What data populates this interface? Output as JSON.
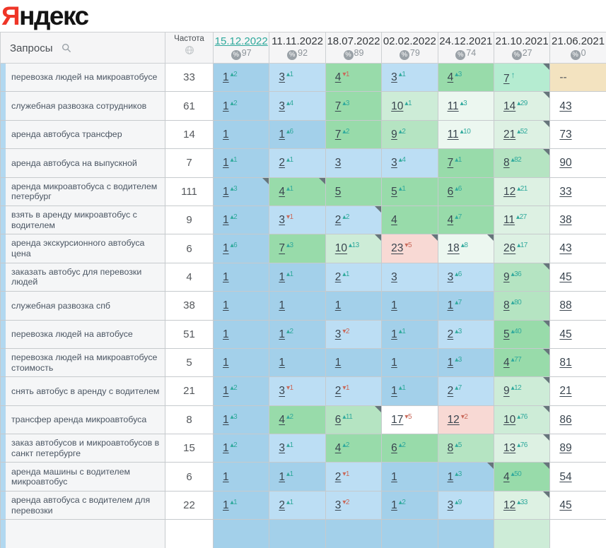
{
  "logo": {
    "ya": "Я",
    "rest": "ндекс"
  },
  "glyphs": {
    "up": "▴",
    "down": "▾",
    "new": "↑",
    "percent": "%"
  },
  "palette": {
    "blue1": "#a3d0ea",
    "blue2": "#bcdef4",
    "green1": "#98dbaa",
    "green2": "#b5e4c2",
    "green3": "#cdecd7",
    "green4": "#ddf1e3",
    "green5": "#ecf7f0",
    "mint": "#b5ecd1",
    "pink": "#f8d9d4",
    "tan": "#f3e3c0",
    "white": "#ffffff",
    "accent_teal": "#2fa99c",
    "delta_red": "#c9695a",
    "corner": "#66757b",
    "strip_blue": "#b2d8f0",
    "logo_red": "#ef3527"
  },
  "table": {
    "queries_header": "Запросы",
    "frequency_header": "Частота",
    "dates": [
      {
        "label": "15.12.2022",
        "score": "97",
        "selected": true
      },
      {
        "label": "11.11.2022",
        "score": "92",
        "selected": false
      },
      {
        "label": "18.07.2022",
        "score": "89",
        "selected": false
      },
      {
        "label": "02.02.2022",
        "score": "79",
        "selected": false
      },
      {
        "label": "24.12.2021",
        "score": "74",
        "selected": false
      },
      {
        "label": "21.10.2021",
        "score": "27",
        "selected": false
      },
      {
        "label": "21.06.2021",
        "score": "0",
        "selected": false
      }
    ],
    "rows": [
      {
        "query": "перевозка людей на микроавтобусе",
        "frequency": "33",
        "cells": [
          {
            "value": "1",
            "delta": "2",
            "dir": "up",
            "bg": "blue1"
          },
          {
            "value": "3",
            "delta": "1",
            "dir": "up",
            "bg": "blue2"
          },
          {
            "value": "4",
            "delta": "1",
            "dir": "down",
            "bg": "green1"
          },
          {
            "value": "3",
            "delta": "1",
            "dir": "up",
            "bg": "blue2"
          },
          {
            "value": "4",
            "delta": "3",
            "dir": "up",
            "bg": "green1"
          },
          {
            "value": "7",
            "delta": "",
            "dir": "new",
            "bg": "mint",
            "corner": true
          },
          {
            "value": "--",
            "delta": "",
            "dir": "none",
            "bg": "tan",
            "nolink": true
          }
        ]
      },
      {
        "query": "служебная развозка сотрудников",
        "frequency": "61",
        "cells": [
          {
            "value": "1",
            "delta": "2",
            "dir": "up",
            "bg": "blue1"
          },
          {
            "value": "3",
            "delta": "4",
            "dir": "up",
            "bg": "blue2"
          },
          {
            "value": "7",
            "delta": "3",
            "dir": "up",
            "bg": "green1"
          },
          {
            "value": "10",
            "delta": "1",
            "dir": "up",
            "bg": "green3"
          },
          {
            "value": "11",
            "delta": "3",
            "dir": "up",
            "bg": "green5"
          },
          {
            "value": "14",
            "delta": "29",
            "dir": "up",
            "bg": "green4",
            "corner": true
          },
          {
            "value": "43",
            "delta": "",
            "dir": "none",
            "bg": "white"
          }
        ]
      },
      {
        "query": "аренда автобуса трансфер",
        "frequency": "14",
        "cells": [
          {
            "value": "1",
            "delta": "",
            "dir": "none",
            "bg": "blue1"
          },
          {
            "value": "1",
            "delta": "6",
            "dir": "up",
            "bg": "blue1"
          },
          {
            "value": "7",
            "delta": "2",
            "dir": "up",
            "bg": "green1"
          },
          {
            "value": "9",
            "delta": "2",
            "dir": "up",
            "bg": "green2"
          },
          {
            "value": "11",
            "delta": "10",
            "dir": "up",
            "bg": "green5"
          },
          {
            "value": "21",
            "delta": "52",
            "dir": "up",
            "bg": "green4",
            "corner": true
          },
          {
            "value": "73",
            "delta": "",
            "dir": "none",
            "bg": "white"
          }
        ]
      },
      {
        "query": "аренда автобуса на выпускной",
        "frequency": "7",
        "cells": [
          {
            "value": "1",
            "delta": "1",
            "dir": "up",
            "bg": "blue1"
          },
          {
            "value": "2",
            "delta": "1",
            "dir": "up",
            "bg": "blue2"
          },
          {
            "value": "3",
            "delta": "",
            "dir": "none",
            "bg": "blue2"
          },
          {
            "value": "3",
            "delta": "4",
            "dir": "up",
            "bg": "blue2"
          },
          {
            "value": "7",
            "delta": "1",
            "dir": "up",
            "bg": "green1"
          },
          {
            "value": "8",
            "delta": "82",
            "dir": "up",
            "bg": "green2",
            "corner": true
          },
          {
            "value": "90",
            "delta": "",
            "dir": "none",
            "bg": "white"
          }
        ]
      },
      {
        "query": "аренда микроавтобуса с водителем петербург",
        "frequency": "111",
        "cells": [
          {
            "value": "1",
            "delta": "3",
            "dir": "up",
            "bg": "blue1",
            "corner": true
          },
          {
            "value": "4",
            "delta": "1",
            "dir": "up",
            "bg": "green1",
            "corner": true
          },
          {
            "value": "5",
            "delta": "",
            "dir": "none",
            "bg": "green1"
          },
          {
            "value": "5",
            "delta": "1",
            "dir": "up",
            "bg": "green1"
          },
          {
            "value": "6",
            "delta": "6",
            "dir": "up",
            "bg": "green1"
          },
          {
            "value": "12",
            "delta": "21",
            "dir": "up",
            "bg": "green4"
          },
          {
            "value": "33",
            "delta": "",
            "dir": "none",
            "bg": "white"
          }
        ]
      },
      {
        "query": "взять в аренду микроавтобус с водителем",
        "frequency": "9",
        "cells": [
          {
            "value": "1",
            "delta": "2",
            "dir": "up",
            "bg": "blue1"
          },
          {
            "value": "3",
            "delta": "1",
            "dir": "down",
            "bg": "blue2"
          },
          {
            "value": "2",
            "delta": "2",
            "dir": "up",
            "bg": "blue2",
            "corner": true
          },
          {
            "value": "4",
            "delta": "",
            "dir": "none",
            "bg": "green1"
          },
          {
            "value": "4",
            "delta": "7",
            "dir": "up",
            "bg": "green1"
          },
          {
            "value": "11",
            "delta": "27",
            "dir": "up",
            "bg": "green4"
          },
          {
            "value": "38",
            "delta": "",
            "dir": "none",
            "bg": "white"
          }
        ]
      },
      {
        "query": "аренда экскурсионного автобуса цена",
        "frequency": "6",
        "cells": [
          {
            "value": "1",
            "delta": "6",
            "dir": "up",
            "bg": "blue1"
          },
          {
            "value": "7",
            "delta": "3",
            "dir": "up",
            "bg": "green1"
          },
          {
            "value": "10",
            "delta": "13",
            "dir": "up",
            "bg": "green3",
            "corner": true
          },
          {
            "value": "23",
            "delta": "5",
            "dir": "down",
            "bg": "pink",
            "corner": true
          },
          {
            "value": "18",
            "delta": "8",
            "dir": "up",
            "bg": "green5",
            "corner": true
          },
          {
            "value": "26",
            "delta": "17",
            "dir": "up",
            "bg": "green4"
          },
          {
            "value": "43",
            "delta": "",
            "dir": "none",
            "bg": "white"
          }
        ]
      },
      {
        "query": "заказать автобус для перевозки людей",
        "frequency": "4",
        "cells": [
          {
            "value": "1",
            "delta": "",
            "dir": "none",
            "bg": "blue1"
          },
          {
            "value": "1",
            "delta": "1",
            "dir": "up",
            "bg": "blue1"
          },
          {
            "value": "2",
            "delta": "1",
            "dir": "up",
            "bg": "blue2"
          },
          {
            "value": "3",
            "delta": "",
            "dir": "none",
            "bg": "blue2"
          },
          {
            "value": "3",
            "delta": "6",
            "dir": "up",
            "bg": "blue2"
          },
          {
            "value": "9",
            "delta": "36",
            "dir": "up",
            "bg": "green2",
            "corner": true
          },
          {
            "value": "45",
            "delta": "",
            "dir": "none",
            "bg": "white"
          }
        ]
      },
      {
        "query": "служебная развозка спб",
        "frequency": "38",
        "cells": [
          {
            "value": "1",
            "delta": "",
            "dir": "none",
            "bg": "blue1"
          },
          {
            "value": "1",
            "delta": "",
            "dir": "none",
            "bg": "blue1"
          },
          {
            "value": "1",
            "delta": "",
            "dir": "none",
            "bg": "blue1"
          },
          {
            "value": "1",
            "delta": "",
            "dir": "none",
            "bg": "blue1"
          },
          {
            "value": "1",
            "delta": "7",
            "dir": "up",
            "bg": "blue1"
          },
          {
            "value": "8",
            "delta": "80",
            "dir": "up",
            "bg": "green2"
          },
          {
            "value": "88",
            "delta": "",
            "dir": "none",
            "bg": "white"
          }
        ]
      },
      {
        "query": "перевозка людей на автобусе",
        "frequency": "51",
        "cells": [
          {
            "value": "1",
            "delta": "",
            "dir": "none",
            "bg": "blue1"
          },
          {
            "value": "1",
            "delta": "2",
            "dir": "up",
            "bg": "blue1"
          },
          {
            "value": "3",
            "delta": "2",
            "dir": "down",
            "bg": "blue2"
          },
          {
            "value": "1",
            "delta": "1",
            "dir": "up",
            "bg": "blue1"
          },
          {
            "value": "2",
            "delta": "3",
            "dir": "up",
            "bg": "blue2"
          },
          {
            "value": "5",
            "delta": "40",
            "dir": "up",
            "bg": "green1",
            "corner": true
          },
          {
            "value": "45",
            "delta": "",
            "dir": "none",
            "bg": "white"
          }
        ]
      },
      {
        "query": "перевозка людей на микроавтобусе стоимость",
        "frequency": "5",
        "cells": [
          {
            "value": "1",
            "delta": "",
            "dir": "none",
            "bg": "blue1"
          },
          {
            "value": "1",
            "delta": "",
            "dir": "none",
            "bg": "blue1"
          },
          {
            "value": "1",
            "delta": "",
            "dir": "none",
            "bg": "blue1"
          },
          {
            "value": "1",
            "delta": "",
            "dir": "none",
            "bg": "blue1"
          },
          {
            "value": "1",
            "delta": "3",
            "dir": "up",
            "bg": "blue1"
          },
          {
            "value": "4",
            "delta": "77",
            "dir": "up",
            "bg": "green1",
            "corner": true
          },
          {
            "value": "81",
            "delta": "",
            "dir": "none",
            "bg": "white"
          }
        ]
      },
      {
        "query": "снять автобус в аренду с водителем",
        "frequency": "21",
        "cells": [
          {
            "value": "1",
            "delta": "2",
            "dir": "up",
            "bg": "blue1"
          },
          {
            "value": "3",
            "delta": "1",
            "dir": "down",
            "bg": "blue2"
          },
          {
            "value": "2",
            "delta": "1",
            "dir": "down",
            "bg": "blue2"
          },
          {
            "value": "1",
            "delta": "1",
            "dir": "up",
            "bg": "blue1"
          },
          {
            "value": "2",
            "delta": "7",
            "dir": "up",
            "bg": "blue2"
          },
          {
            "value": "9",
            "delta": "12",
            "dir": "up",
            "bg": "green3",
            "corner": true
          },
          {
            "value": "21",
            "delta": "",
            "dir": "none",
            "bg": "white"
          }
        ]
      },
      {
        "query": "трансфер аренда микроавтобуса",
        "frequency": "8",
        "cells": [
          {
            "value": "1",
            "delta": "3",
            "dir": "up",
            "bg": "blue1"
          },
          {
            "value": "4",
            "delta": "2",
            "dir": "up",
            "bg": "green1"
          },
          {
            "value": "6",
            "delta": "11",
            "dir": "up",
            "bg": "green2",
            "corner": true
          },
          {
            "value": "17",
            "delta": "5",
            "dir": "down",
            "bg": "white"
          },
          {
            "value": "12",
            "delta": "2",
            "dir": "down",
            "bg": "pink"
          },
          {
            "value": "10",
            "delta": "76",
            "dir": "up",
            "bg": "green3",
            "corner": true
          },
          {
            "value": "86",
            "delta": "",
            "dir": "none",
            "bg": "white"
          }
        ]
      },
      {
        "query": "заказ автобусов и микроавтобусов в санкт петербурге",
        "frequency": "15",
        "cells": [
          {
            "value": "1",
            "delta": "2",
            "dir": "up",
            "bg": "blue1"
          },
          {
            "value": "3",
            "delta": "1",
            "dir": "up",
            "bg": "blue2"
          },
          {
            "value": "4",
            "delta": "2",
            "dir": "up",
            "bg": "green1"
          },
          {
            "value": "6",
            "delta": "2",
            "dir": "up",
            "bg": "green1"
          },
          {
            "value": "8",
            "delta": "5",
            "dir": "up",
            "bg": "green2"
          },
          {
            "value": "13",
            "delta": "76",
            "dir": "up",
            "bg": "green4",
            "corner": true
          },
          {
            "value": "89",
            "delta": "",
            "dir": "none",
            "bg": "white"
          }
        ]
      },
      {
        "query": "аренда машины с водителем микроавтобус",
        "frequency": "6",
        "cells": [
          {
            "value": "1",
            "delta": "",
            "dir": "none",
            "bg": "blue1"
          },
          {
            "value": "1",
            "delta": "1",
            "dir": "up",
            "bg": "blue1"
          },
          {
            "value": "2",
            "delta": "1",
            "dir": "down",
            "bg": "blue2"
          },
          {
            "value": "1",
            "delta": "",
            "dir": "none",
            "bg": "blue1"
          },
          {
            "value": "1",
            "delta": "3",
            "dir": "up",
            "bg": "blue1",
            "corner": true
          },
          {
            "value": "4",
            "delta": "50",
            "dir": "up",
            "bg": "green1",
            "corner": true
          },
          {
            "value": "54",
            "delta": "",
            "dir": "none",
            "bg": "white"
          }
        ]
      },
      {
        "query": "аренда автобуса с водителем для перевозки",
        "frequency": "22",
        "cells": [
          {
            "value": "1",
            "delta": "1",
            "dir": "up",
            "bg": "blue1"
          },
          {
            "value": "2",
            "delta": "1",
            "dir": "up",
            "bg": "blue2"
          },
          {
            "value": "3",
            "delta": "2",
            "dir": "down",
            "bg": "blue2"
          },
          {
            "value": "1",
            "delta": "2",
            "dir": "up",
            "bg": "blue1"
          },
          {
            "value": "3",
            "delta": "9",
            "dir": "up",
            "bg": "blue2"
          },
          {
            "value": "12",
            "delta": "33",
            "dir": "up",
            "bg": "green4",
            "corner": true
          },
          {
            "value": "45",
            "delta": "",
            "dir": "none",
            "bg": "white"
          }
        ]
      }
    ],
    "partial_row_bg": [
      "blue1",
      "blue1",
      "blue1",
      "blue1",
      "blue1",
      "green3",
      "white"
    ]
  }
}
